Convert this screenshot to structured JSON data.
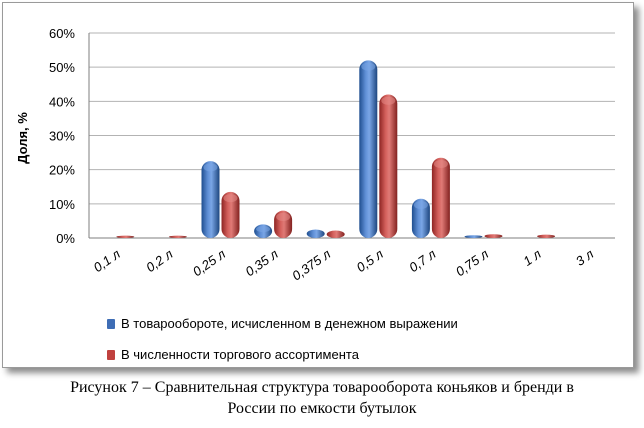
{
  "chart_data": {
    "type": "bar",
    "categories": [
      "0,1 л",
      "0,2 л",
      "0,25 л",
      "0,35 л",
      "0,375 л",
      "0,5 л",
      "0,7 л",
      "0,75 л",
      "1 л",
      "3 л"
    ],
    "series": [
      {
        "name": "В товарообороте, исчисленном в денежном выражении",
        "color": "#3e6db5",
        "values": [
          0,
          0,
          22.5,
          4,
          2.5,
          52,
          11.5,
          0.8,
          0,
          0
        ]
      },
      {
        "name": "В численности торгового ассортимента",
        "color": "#c0413e",
        "values": [
          0.1,
          0.4,
          13.5,
          8,
          2.2,
          42,
          23.5,
          1.1,
          1.0,
          0
        ]
      }
    ],
    "ylabel": "Доля, %",
    "ylim": [
      0,
      60
    ],
    "yticks": [
      "0%",
      "10%",
      "20%",
      "30%",
      "40%",
      "50%",
      "60%"
    ],
    "ytick_values": [
      0,
      10,
      20,
      30,
      40,
      50,
      60
    ],
    "grid": true,
    "legend_position": "bottom"
  },
  "caption": {
    "line1": "Рисунок 7 – Сравнительная структура товарооборота коньяков и бренди в",
    "line2": "России по емкости бутылок"
  }
}
